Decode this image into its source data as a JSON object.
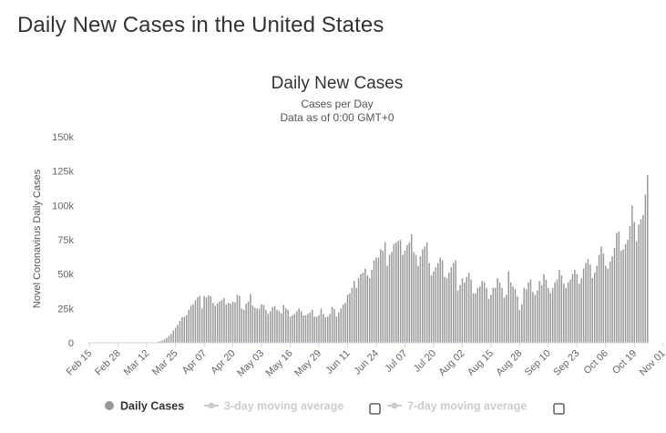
{
  "page": {
    "title": "Daily New Cases in the United States"
  },
  "chart_data": {
    "type": "bar",
    "title": "Daily New Cases",
    "subtitle": "Cases per Day",
    "subtitle2": "Data as of 0:00 GMT+0",
    "ylabel": "Novel Coronavirus Daily Cases",
    "xlabel": "",
    "ylim": [
      0,
      150000
    ],
    "yticks": [
      "0",
      "25k",
      "50k",
      "75k",
      "100k",
      "125k",
      "150k"
    ],
    "x_tick_labels": [
      "Feb 15",
      "Feb 28",
      "Mar 12",
      "Mar 25",
      "Apr 07",
      "Apr 20",
      "May 03",
      "May 16",
      "May 29",
      "Jun 11",
      "Jun 24",
      "Jul 07",
      "Jul 20",
      "Aug 02",
      "Aug 15",
      "Aug 28",
      "Sep 10",
      "Sep 23",
      "Oct 06",
      "Oct 19",
      "Nov 01"
    ],
    "start_date": "Feb 15",
    "grid": false,
    "legend_position": "bottom",
    "series": [
      {
        "name": "Daily Cases",
        "color": "#999999",
        "values": [
          0,
          0,
          0,
          0,
          0,
          0,
          0,
          0,
          0,
          0,
          0,
          0,
          0,
          0,
          0,
          0,
          0,
          0,
          0,
          0,
          0,
          0,
          0,
          0,
          0,
          0,
          0,
          0,
          0,
          100,
          300,
          600,
          1000,
          1500,
          2500,
          3500,
          5000,
          6500,
          9000,
          11000,
          13000,
          16000,
          18500,
          19000,
          20000,
          24000,
          27000,
          28000,
          31000,
          33000,
          34000,
          25000,
          34000,
          33000,
          34500,
          34000,
          29000,
          27000,
          28500,
          30000,
          31000,
          32500,
          28000,
          29000,
          28500,
          30000,
          29500,
          35000,
          34000,
          25000,
          24000,
          28500,
          30000,
          35500,
          27000,
          25500,
          25000,
          25000,
          28000,
          27500,
          24000,
          21000,
          23000,
          26000,
          26500,
          24000,
          23000,
          21500,
          27500,
          25000,
          24000,
          19000,
          20000,
          21000,
          23000,
          25000,
          23000,
          20000,
          20000,
          21000,
          22000,
          24000,
          19000,
          19000,
          20000,
          25000,
          21000,
          18500,
          19000,
          21000,
          26000,
          24500,
          19000,
          22000,
          25000,
          28000,
          29000,
          35000,
          36000,
          40000,
          45000,
          40000,
          47000,
          50000,
          51000,
          54000,
          49000,
          47000,
          53000,
          60000,
          62000,
          62000,
          68000,
          67000,
          73000,
          56000,
          64000,
          66000,
          72000,
          73000,
          74000,
          75000,
          64000,
          67000,
          71000,
          73000,
          79000,
          66000,
          64000,
          56000,
          63000,
          68000,
          70000,
          73000,
          58000,
          49000,
          52000,
          55000,
          58000,
          62000,
          60000,
          48000,
          47000,
          51000,
          55000,
          58000,
          60000,
          38000,
          42000,
          47000,
          44000,
          48000,
          51000,
          46000,
          36000,
          36000,
          40000,
          41000,
          45000,
          44000,
          40000,
          32000,
          35000,
          40000,
          40000,
          47000,
          44000,
          40000,
          33000,
          35000,
          52000,
          44000,
          41000,
          39000,
          34000,
          24000,
          28000,
          40000,
          39000,
          44000,
          46000,
          37000,
          35000,
          38000,
          45000,
          42000,
          50000,
          46000,
          40000,
          36000,
          40000,
          44000,
          46000,
          53000,
          49000,
          43000,
          40000,
          44000,
          46000,
          50000,
          53000,
          50000,
          43000,
          47000,
          54000,
          58000,
          61000,
          57000,
          47000,
          51000,
          56000,
          64000,
          70000,
          65000,
          56000,
          54000,
          59000,
          63000,
          69000,
          80000,
          81000,
          67000,
          68000,
          72000,
          75000,
          85000,
          100000,
          88000,
          74000,
          86000,
          90000,
          93000,
          108000,
          122000
        ]
      }
    ],
    "legend": [
      {
        "name": "Daily Cases",
        "active": true
      },
      {
        "name": "3-day moving average",
        "active": false
      },
      {
        "name": "7-day moving average",
        "active": false
      }
    ]
  }
}
